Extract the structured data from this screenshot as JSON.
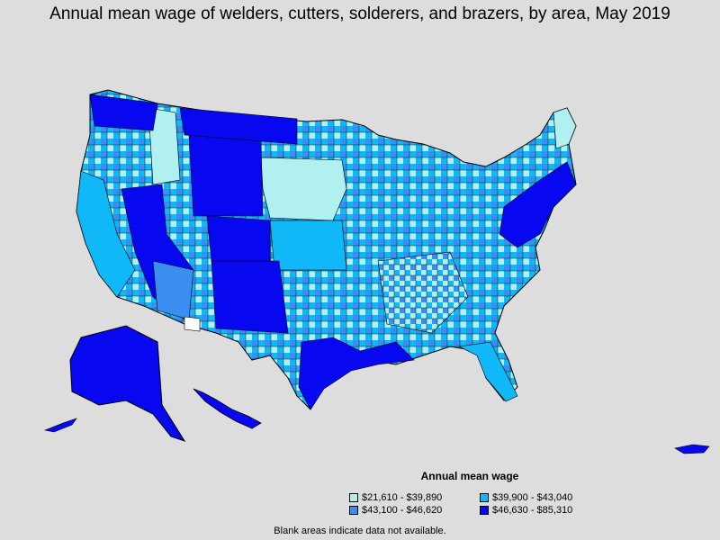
{
  "title": "Annual mean wage of welders, cutters, solderers, and brazers, by area, May 2019",
  "legend": {
    "title": "Annual mean wage",
    "items": [
      {
        "label": "$21,610 - $39,890",
        "color": "#b0f0f0"
      },
      {
        "label": "$43,100 - $46,620",
        "color": "#3a8ef0"
      },
      {
        "label": "$39,900 - $43,040",
        "color": "#10b8f8"
      },
      {
        "label": "$46,630 - $85,310",
        "color": "#0808f0"
      }
    ]
  },
  "footnote": "Blank areas indicate data not available.",
  "colors": {
    "background": "#dddddd",
    "no_data": "#ffffff",
    "border": "#000000"
  }
}
